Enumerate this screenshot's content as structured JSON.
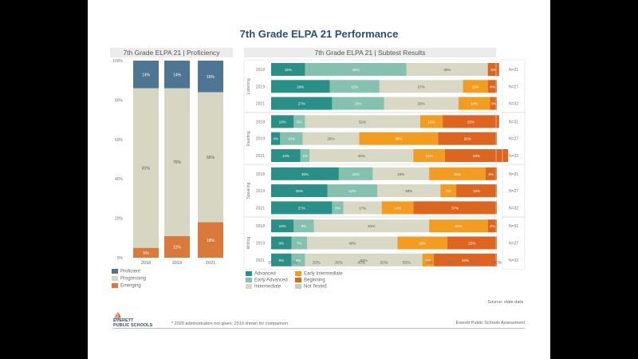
{
  "page": {
    "title": "7th Grade ELPA 21 Performance",
    "source_note": "Source: state data",
    "footnote": "* 2020 administration not given; 2019 shown for comparison",
    "footer_right": "Everett Public Schools Assessment",
    "logo_line1": "EVERETT",
    "logo_line2": "PUBLIC SCHOOLS",
    "logo_icon": "sailboat-icon"
  },
  "colors": {
    "proficient": "#4e7591",
    "progressing": "#d6d6c3",
    "emerging": "#d97a3c",
    "advanced": "#2a8f86",
    "early_advanced": "#86c0ae",
    "intermediate": "#d8d8c4",
    "early_intermediate": "#f39c22",
    "beginning": "#dc6520",
    "not_tested": "#c9c9c9"
  },
  "left_panel": {
    "header": "7th Grade ELPA 21 | Proficiency"
  },
  "right_panel": {
    "header": "7th Grade ELPA 21 | Subtest Results"
  },
  "chart_data": [
    {
      "type": "bar",
      "title": "7th Grade ELPA 21 | Proficiency",
      "stacked": true,
      "categories": [
        "2018",
        "2019",
        "2021"
      ],
      "ylim": [
        0,
        100
      ],
      "yticks": [
        "0%",
        "20%",
        "40%",
        "60%",
        "80%",
        "100%"
      ],
      "series": [
        {
          "name": "Emerging",
          "values": [
            5,
            11,
            18
          ]
        },
        {
          "name": "Progressing",
          "values": [
            81,
            75,
            66
          ]
        },
        {
          "name": "Proficient",
          "values": [
            14,
            14,
            16
          ]
        }
      ],
      "legend": [
        "Proficient",
        "Progressing",
        "Emerging"
      ],
      "legend_position": "bottom-left"
    },
    {
      "type": "bar",
      "orientation": "horizontal",
      "stacked": true,
      "title": "7th Grade ELPA 21 | Subtest Results",
      "xlim": [
        0,
        100
      ],
      "xticks": [
        "0%",
        "10%",
        "20%",
        "30%",
        "40%",
        "50%",
        "60%",
        "70%",
        "80%",
        "90%",
        "100%"
      ],
      "series_names": [
        "Advanced",
        "Early Advanced",
        "Intermediate",
        "Early Intermediate",
        "Beginning"
      ],
      "groups": [
        {
          "name": "Listening",
          "rows": [
            {
              "year": "2018",
              "right_label": "N=31",
              "values": [
                15,
                45,
                36,
                0,
                5
              ]
            },
            {
              "year": "2019",
              "right_label": "N=27",
              "values": [
                26,
                22,
                37,
                11,
                4
              ]
            },
            {
              "year": "2021",
              "right_label": "N=32",
              "values": [
                27,
                23,
                33,
                14,
                3
              ]
            }
          ]
        },
        {
          "name": "Reading",
          "rows": [
            {
              "year": "2018",
              "right_label": "N=31",
              "values": [
                10,
                5,
                51,
                10,
                25
              ]
            },
            {
              "year": "2019",
              "right_label": "N=27",
              "values": [
                4,
                10,
                25,
                35,
                26
              ]
            },
            {
              "year": "2021",
              "right_label": "N=32",
              "values": [
                13,
                4,
                46,
                14,
                28
              ]
            }
          ]
        },
        {
          "name": "Speaking",
          "rows": [
            {
              "year": "2018",
              "right_label": "N=31",
              "values": [
                30,
                15,
                25,
                25,
                5
              ]
            },
            {
              "year": "2019",
              "right_label": "N=27",
              "values": [
                25,
                22,
                28,
                7,
                18
              ]
            },
            {
              "year": "2021",
              "right_label": "N=32",
              "values": [
                27,
                5,
                17,
                14,
                37
              ]
            }
          ]
        },
        {
          "name": "Writing",
          "rows": [
            {
              "year": "2018",
              "right_label": "N=31",
              "values": [
                10,
                9,
                51,
                26,
                4
              ]
            },
            {
              "year": "2019",
              "right_label": "N=27",
              "values": [
                9,
                7,
                40,
                22,
                22
              ]
            },
            {
              "year": "2021",
              "right_label": "N=32",
              "values": [
                9,
                6,
                52,
                5,
                28
              ]
            }
          ]
        }
      ],
      "legend": [
        "Advanced",
        "Early Advanced",
        "Intermediate",
        "Early Intermediate",
        "Beginning",
        "Not Tested"
      ],
      "legend_position": "bottom"
    }
  ]
}
